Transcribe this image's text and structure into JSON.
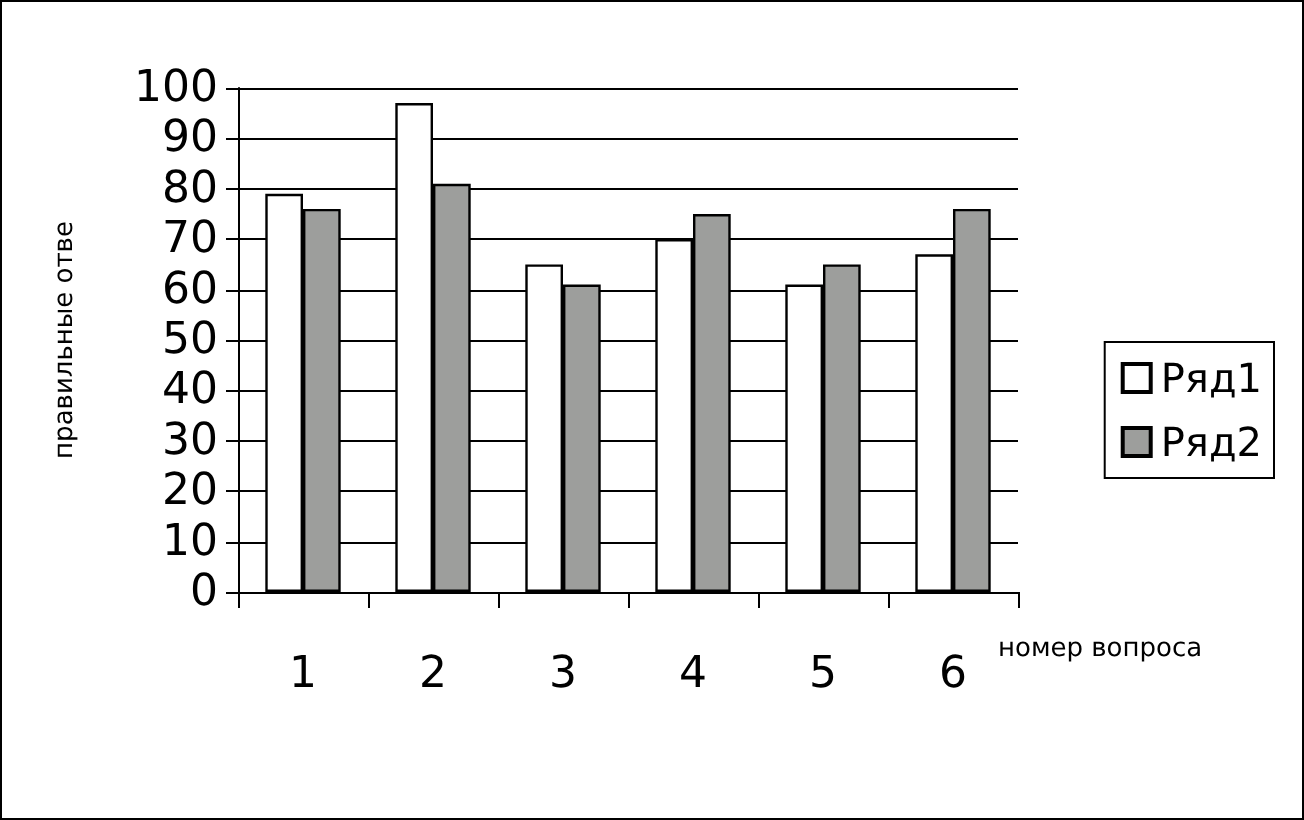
{
  "chart_data": {
    "type": "bar",
    "ylabel": "правильные отве",
    "xlabel": "номер вопроса",
    "categories": [
      "1",
      "2",
      "3",
      "4",
      "5",
      "6"
    ],
    "series": [
      {
        "name": "Ряд1",
        "color": "#ffffff",
        "values": [
          79,
          97,
          65,
          70,
          61,
          67
        ]
      },
      {
        "name": "Ряд2",
        "color": "#9d9e9c",
        "values": [
          76,
          81,
          61,
          75,
          65,
          76
        ]
      }
    ],
    "ylim": [
      0,
      100
    ],
    "yticks": [
      0,
      10,
      20,
      30,
      40,
      50,
      60,
      70,
      80,
      90,
      100
    ],
    "grid": "y",
    "legend": "right"
  }
}
